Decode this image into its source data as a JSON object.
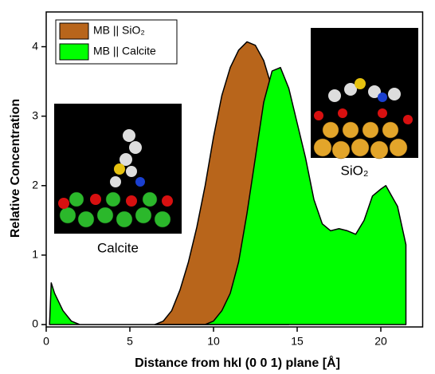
{
  "chart_data": {
    "type": "area",
    "xlabel": "Distance from hkl (0 0 1) plane [Å]",
    "ylabel": "Relative Concentration",
    "xlim": [
      0,
      22.5
    ],
    "ylim": [
      0,
      4.5
    ],
    "xticks": [
      0,
      5,
      10,
      15,
      20
    ],
    "yticks": [
      0,
      1,
      2,
      3,
      4
    ],
    "legend": "upper left",
    "annotations": [
      "Calcite",
      "SiO₂"
    ],
    "series": [
      {
        "name": "MB || SiO₂",
        "color": "#b8651b",
        "x": [
          6.5,
          7,
          7.5,
          8,
          8.5,
          9,
          9.5,
          10,
          10.5,
          11,
          11.5,
          12,
          12.5,
          13,
          13.5,
          14,
          14.5
        ],
        "values": [
          0,
          0.05,
          0.2,
          0.5,
          0.9,
          1.4,
          2.0,
          2.7,
          3.3,
          3.7,
          3.95,
          4.07,
          4.02,
          3.8,
          3.4,
          2.5,
          0
        ]
      },
      {
        "name": "MB || Calcite",
        "color": "#00ff00",
        "x": [
          0.2,
          0.3,
          0.5,
          1,
          1.5,
          2,
          9.5,
          10,
          10.5,
          11,
          11.5,
          12,
          12.5,
          13,
          13.5,
          14,
          14.5,
          15,
          15.5,
          16,
          16.5,
          17,
          17.5,
          18,
          18.5,
          19,
          19.5,
          20,
          20.3,
          21,
          21.5,
          21.5
        ],
        "values": [
          0,
          0.6,
          0.45,
          0.2,
          0.05,
          0,
          0,
          0.05,
          0.2,
          0.45,
          0.9,
          1.6,
          2.4,
          3.2,
          3.65,
          3.7,
          3.4,
          2.9,
          2.4,
          1.8,
          1.45,
          1.35,
          1.38,
          1.35,
          1.3,
          1.5,
          1.85,
          1.95,
          2.0,
          1.7,
          1.15,
          0
        ]
      }
    ]
  }
}
